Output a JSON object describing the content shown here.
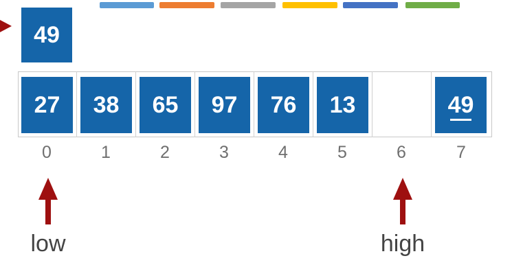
{
  "color_bars": [
    {
      "color": "#5b9bd5"
    },
    {
      "color": "#ed7d31"
    },
    {
      "color": "#a5a5a5"
    },
    {
      "color": "#ffc000"
    },
    {
      "color": "#4472c4"
    },
    {
      "color": "#70ad47"
    }
  ],
  "pivot": {
    "value": "49",
    "arrow_color": "#9e1010",
    "box_color": "#1565a9"
  },
  "array": {
    "cells": [
      {
        "index": "0",
        "value": "27"
      },
      {
        "index": "1",
        "value": "38"
      },
      {
        "index": "2",
        "value": "65"
      },
      {
        "index": "3",
        "value": "97"
      },
      {
        "index": "4",
        "value": "76"
      },
      {
        "index": "5",
        "value": "13"
      },
      {
        "index": "6",
        "value": ""
      },
      {
        "index": "7",
        "value": "49",
        "underlined": true
      }
    ]
  },
  "pointers": {
    "low": {
      "label": "low",
      "index": 0
    },
    "high": {
      "label": "high",
      "index": 6
    }
  }
}
